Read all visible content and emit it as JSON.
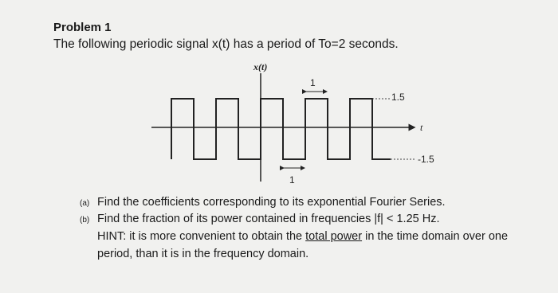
{
  "header": {
    "title": "Problem 1",
    "statement": "The following periodic signal x(t) has a period of To=2 seconds."
  },
  "figure": {
    "y_axis_label": "x(t)",
    "x_axis_label": "t",
    "high_label": "1.5",
    "low_label": "-1.5",
    "top_width_label": "1",
    "bottom_width_label": "1"
  },
  "questions": [
    {
      "marker": "(a)",
      "text": "Find the coefficients corresponding to its exponential Fourier Series."
    },
    {
      "marker": "(b)",
      "text": "Find the fraction of its power contained in frequencies |f| < 1.25 Hz.",
      "hint_before": "HINT: it is more convenient to obtain the",
      "hint_underlined": "total power",
      "hint_after": "in the time domain over one period, than it is in the frequency domain."
    }
  ]
}
